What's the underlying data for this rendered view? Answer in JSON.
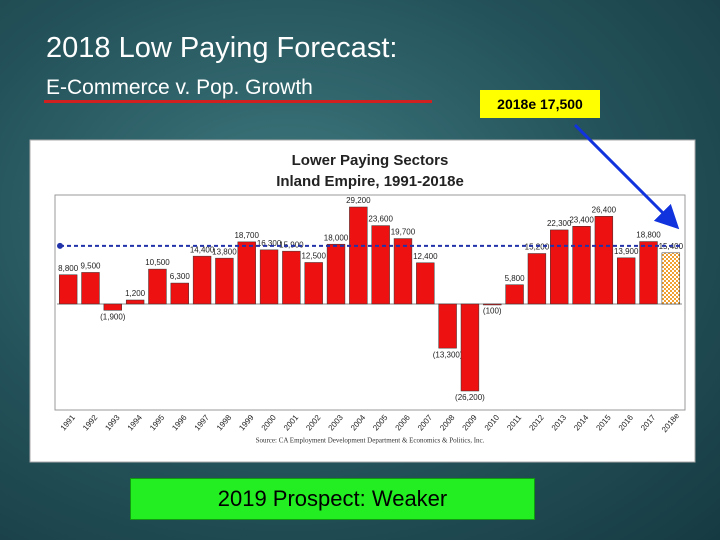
{
  "slide": {
    "title": "2018 Low Paying Forecast:",
    "subtitle": "E-Commerce v. Pop. Growth",
    "callout": "2018e 17,500",
    "prospect": "2019 Prospect:  Weaker"
  },
  "chart_data": {
    "type": "bar",
    "title": "Lower Paying Sectors",
    "subtitle": "Inland Empire, 1991-2018e",
    "source": "Source: CA Employment Development Department & Economics & Politics, Inc.",
    "categories": [
      "1991",
      "1992",
      "1993",
      "1994",
      "1995",
      "1996",
      "1997",
      "1998",
      "1999",
      "2000",
      "2001",
      "2002",
      "2003",
      "2004",
      "2005",
      "2006",
      "2007",
      "2008",
      "2009",
      "2010",
      "2011",
      "2012",
      "2013",
      "2014",
      "2015",
      "2016",
      "2017",
      "2018e"
    ],
    "values": [
      8800,
      9500,
      -1900,
      1200,
      10500,
      6300,
      14400,
      13800,
      18700,
      16300,
      15900,
      12500,
      18000,
      29200,
      23600,
      19700,
      12400,
      -13300,
      -26200,
      -100,
      5800,
      15200,
      22300,
      23400,
      26400,
      13900,
      18800,
      15400
    ],
    "value_labels": [
      "8,800",
      "9,500",
      "(1,900)",
      "1,200",
      "10,500",
      "6,300",
      "14,400",
      "13,800",
      "18,700",
      "16,300",
      "15,900",
      "12,500",
      "18,000",
      "29,200",
      "23,600",
      "19,700",
      "12,400",
      "(13,300)",
      "(26,200)",
      "(100)",
      "5,800",
      "15,200",
      "22,300",
      "23,400",
      "26,400",
      "13,900",
      "18,800",
      "15,400"
    ],
    "color": "#ee1111",
    "forecast_color": "#f0a030",
    "reference_line": 17500,
    "reference_color": "#2233aa"
  }
}
